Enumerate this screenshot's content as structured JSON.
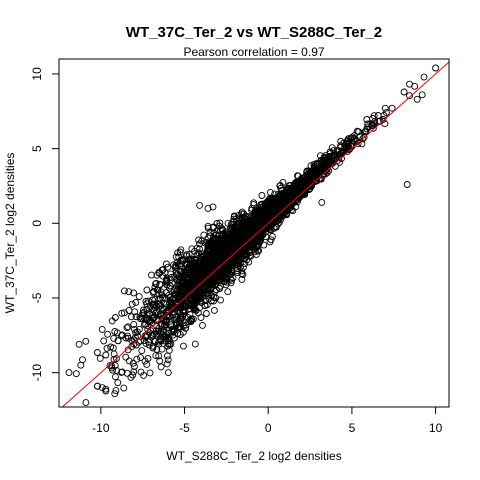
{
  "chart_data": {
    "type": "scatter",
    "title": "WT_37C_Ter_2 vs WT_S288C_Ter_2",
    "subtitle": "Pearson correlation =  0.97",
    "xlabel": "WT_S288C_Ter_2 log2 densities",
    "ylabel": "WT_37C_Ter_2 log2 densities",
    "xlim": [
      -12.5,
      10.8
    ],
    "ylim": [
      -12.3,
      11.0
    ],
    "xticks": [
      -10,
      -5,
      0,
      5,
      10
    ],
    "yticks": [
      -10,
      -5,
      0,
      5,
      10
    ],
    "grid": false,
    "legend": "none",
    "point_color": "#000000",
    "fit_line": {
      "slope": 1.0,
      "intercept": 0.0,
      "color": "#ff0000"
    },
    "point_summary": {
      "approx_count": 3000,
      "x_range": [
        -12.0,
        10.0
      ],
      "trend": "strong positive linear, spread widening at low values"
    },
    "outliers": [
      {
        "x": 10.0,
        "y": 10.4
      },
      {
        "x": 8.3,
        "y": 2.6
      },
      {
        "x": 9.2,
        "y": 8.6
      },
      {
        "x": 8.9,
        "y": 8.3
      },
      {
        "x": -11.9,
        "y": -10.0
      },
      {
        "x": -11.2,
        "y": -9.5
      },
      {
        "x": -11.3,
        "y": -8.1
      },
      {
        "x": -10.9,
        "y": -7.9
      },
      {
        "x": -4.1,
        "y": 1.2
      },
      {
        "x": -3.6,
        "y": 1.0
      },
      {
        "x": -3.3,
        "y": 1.1
      },
      {
        "x": -3.6,
        "y": -0.2
      },
      {
        "x": -10.2,
        "y": -10.9
      },
      {
        "x": -9.1,
        "y": -11.2
      },
      {
        "x": -6.1,
        "y": -7.9
      },
      {
        "x": -5.9,
        "y": -8.1
      },
      {
        "x": -4.6,
        "y": -6.4
      },
      {
        "x": -2.6,
        "y": -3.9
      },
      {
        "x": 1.5,
        "y": 2.0
      },
      {
        "x": 3.2,
        "y": 1.4
      }
    ]
  }
}
